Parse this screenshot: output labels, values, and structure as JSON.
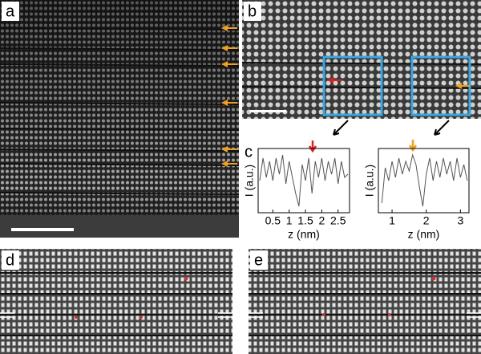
{
  "panel_labels": [
    "a",
    "b",
    "c",
    "d",
    "e"
  ],
  "chart_data": [
    {
      "type": "line",
      "xlabel": "z (nm)",
      "ylabel": "I (a.u.)",
      "color": "#555555",
      "x": [
        0.1,
        0.2,
        0.3,
        0.4,
        0.5,
        0.6,
        0.7,
        0.8,
        0.9,
        1.0,
        1.1,
        1.2,
        1.3,
        1.4,
        1.5,
        1.6,
        1.7,
        1.8,
        1.9,
        2.0,
        2.1,
        2.2,
        2.3,
        2.4,
        2.5,
        2.6,
        2.7,
        2.8
      ],
      "values": [
        0.5,
        0.85,
        0.55,
        0.8,
        0.5,
        0.85,
        0.6,
        0.9,
        0.45,
        0.8,
        0.55,
        0.3,
        0.1,
        0.75,
        0.5,
        0.85,
        0.3,
        0.8,
        0.55,
        0.85,
        0.5,
        0.8,
        0.6,
        0.85,
        0.45,
        0.8,
        0.55,
        0.6
      ],
      "xlim": [
        0.05,
        2.85
      ],
      "ylim": [
        0,
        1
      ],
      "xticks": [
        0.5,
        1,
        1.5,
        2,
        2.5
      ]
    },
    {
      "type": "line",
      "xlabel": "z (nm)",
      "ylabel": "I (a.u.)",
      "color": "#555555",
      "x": [
        0.7,
        0.8,
        0.9,
        1.0,
        1.1,
        1.2,
        1.3,
        1.4,
        1.5,
        1.6,
        1.7,
        1.8,
        1.9,
        2.0,
        2.1,
        2.2,
        2.3,
        2.4,
        2.5,
        2.6,
        2.7,
        2.8,
        2.9,
        3.0,
        3.1,
        3.2
      ],
      "values": [
        0.15,
        0.7,
        0.5,
        0.8,
        0.55,
        0.85,
        0.6,
        0.8,
        0.65,
        0.9,
        0.75,
        0.4,
        0.1,
        0.6,
        0.85,
        0.5,
        0.8,
        0.55,
        0.85,
        0.6,
        0.8,
        0.5,
        0.85,
        0.55,
        0.75,
        0.5
      ],
      "xlim": [
        0.6,
        3.25
      ],
      "ylim": [
        0,
        1
      ],
      "xticks": [
        1,
        2,
        3
      ]
    }
  ]
}
